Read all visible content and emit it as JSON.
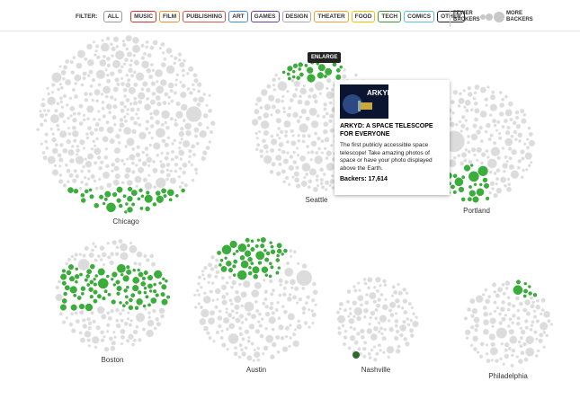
{
  "filter": {
    "label": "FILTER:",
    "buttons": [
      {
        "label": "ALL",
        "color": "#999999"
      },
      {
        "label": "MUSIC",
        "color": "#d9342b"
      },
      {
        "label": "FILM",
        "color": "#e8912d"
      },
      {
        "label": "PUBLISHING",
        "color": "#d9534f"
      },
      {
        "label": "ART",
        "color": "#3b8fd0"
      },
      {
        "label": "GAMES",
        "color": "#6a3fa0"
      },
      {
        "label": "DESIGN",
        "color": "#aaaaaa"
      },
      {
        "label": "THEATER",
        "color": "#f0a030"
      },
      {
        "label": "FOOD",
        "color": "#f2c200"
      },
      {
        "label": "TECH",
        "color": "#3a9a3a"
      },
      {
        "label": "COMICS",
        "color": "#5bc0de"
      },
      {
        "label": "OTHER",
        "color": "#222222"
      }
    ]
  },
  "legend": {
    "fewer": "FEWER BACKERS",
    "more": "MORE BACKERS"
  },
  "cities": [
    "Chicago",
    "Seattle",
    "Portland",
    "Boston",
    "Austin",
    "Nashville",
    "Philadelphia"
  ],
  "enlarge": "ENLARGE",
  "tooltip": {
    "image_text": "ARKYD",
    "title": "ARKYD: A SPACE TELESCOPE FOR EVERYONE",
    "description": "The first publicly accessible space telescope! Take amazing photos of space or have your photo displayed above the Earth.",
    "backers": "Backers: 17,614"
  }
}
